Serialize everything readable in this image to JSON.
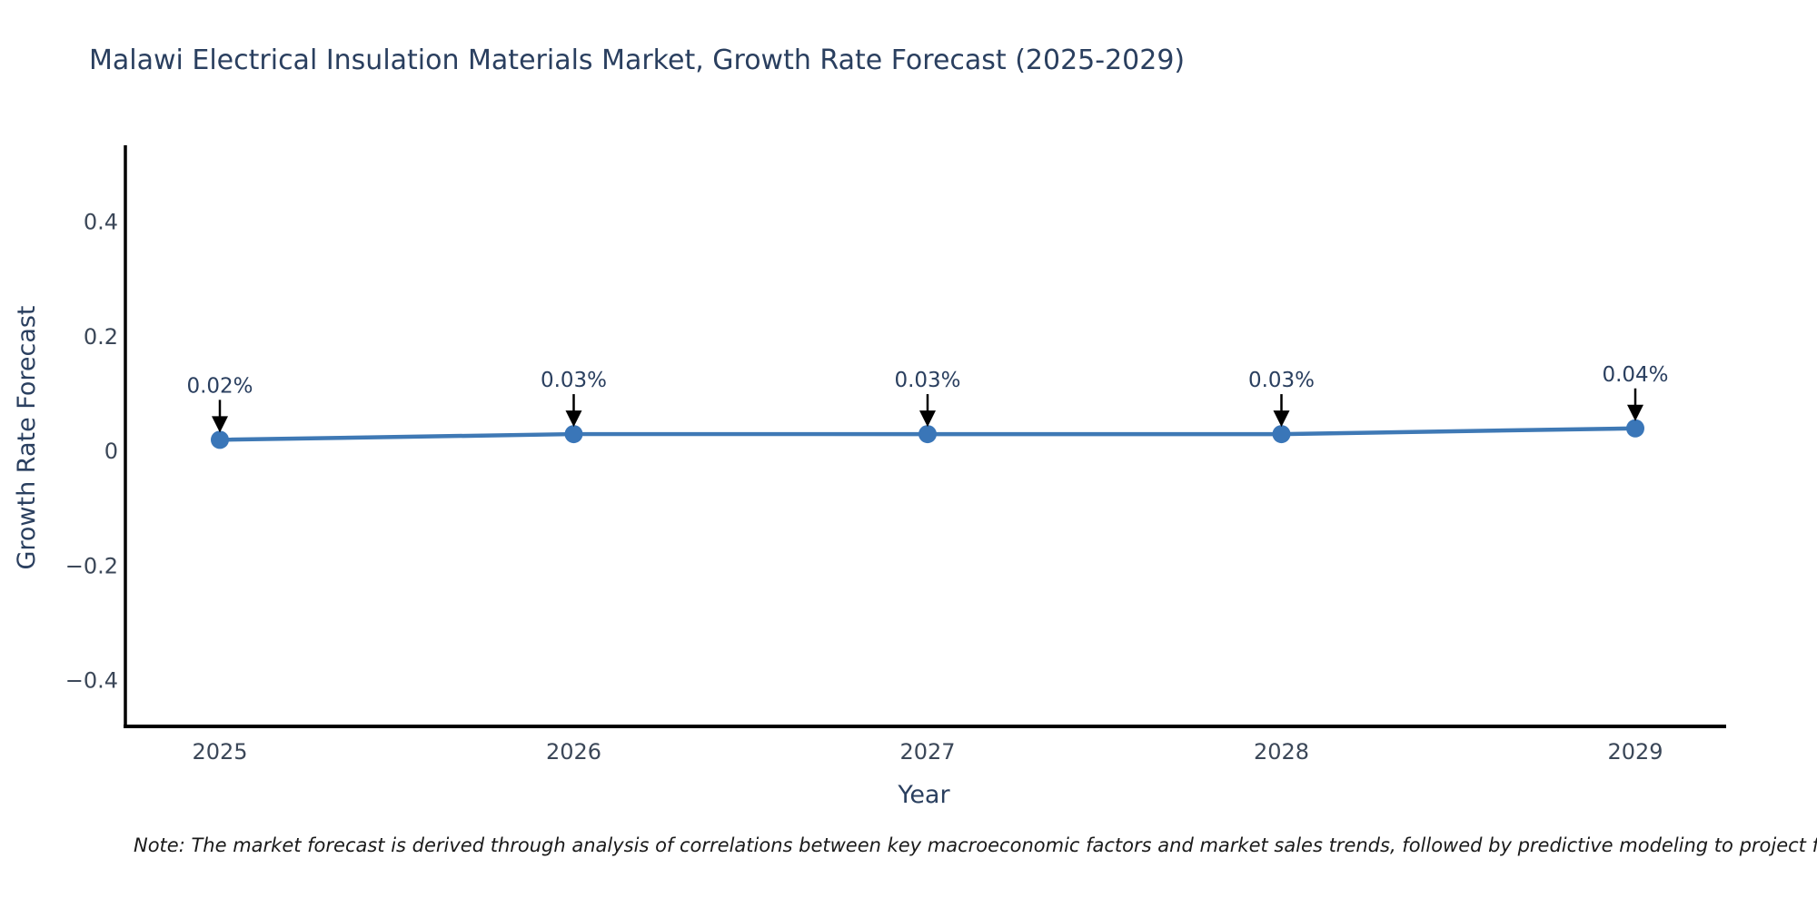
{
  "chart_data": {
    "type": "line",
    "title": "Malawi Electrical Insulation Materials Market, Growth Rate Forecast (2025-2029)",
    "xlabel": "Year",
    "ylabel": "Growth Rate Forecast",
    "x": [
      "2025",
      "2026",
      "2027",
      "2028",
      "2029"
    ],
    "series": [
      {
        "name": "Growth Rate Forecast",
        "values": [
          0.02,
          0.03,
          0.03,
          0.03,
          0.04
        ]
      }
    ],
    "point_labels": [
      "0.02%",
      "0.03%",
      "0.03%",
      "0.03%",
      "0.04%"
    ],
    "yticks": [
      "0.4",
      "0.2",
      "0",
      "−0.2",
      "−0.4"
    ],
    "ytick_values": [
      0.4,
      0.2,
      0,
      -0.2,
      -0.4
    ],
    "ylim": [
      -0.53,
      0.53
    ],
    "grid": false,
    "legend_position": "none",
    "note": "Note: The market forecast is derived through analysis of correlations between key macroeconomic factors and market sales trends, followed by predictive modeling to project future sales."
  },
  "colors": {
    "text": "#2a3f5f",
    "tick_text": "#3b4758",
    "axis": "#000000",
    "line": "#3f79b5",
    "marker": "#3a76b8",
    "arrow": "#000000",
    "note_text": "#1a1a1a",
    "background": "#ffffff"
  }
}
